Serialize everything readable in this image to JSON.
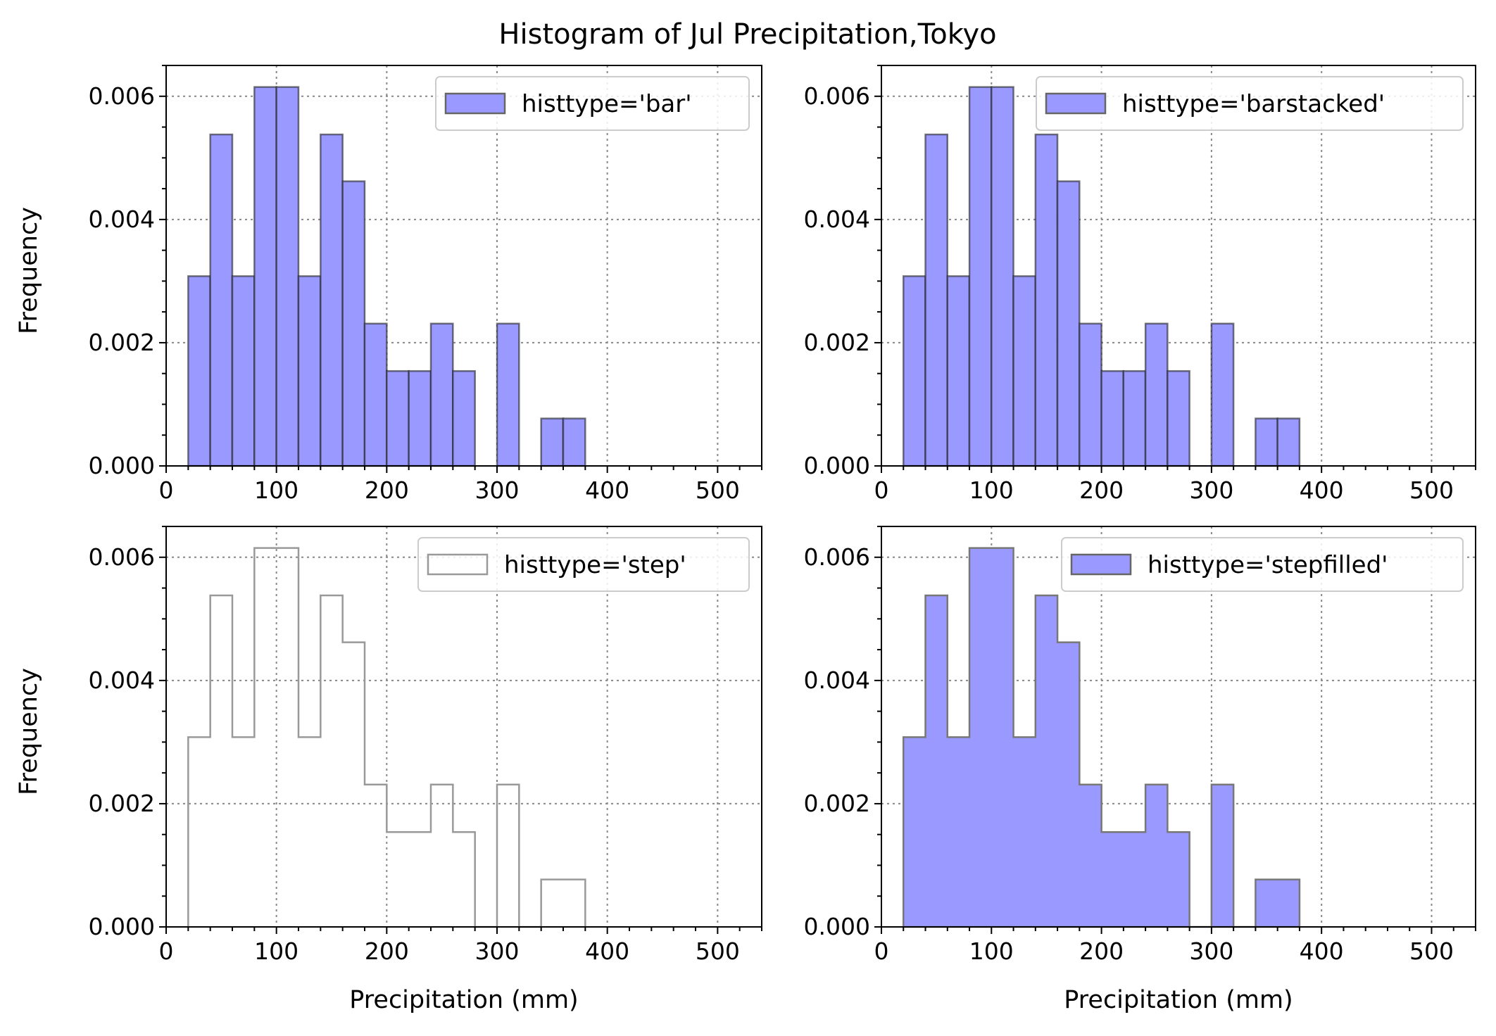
{
  "figure": {
    "title": "Histogram of Jul Precipitation,Tokyo"
  },
  "chart_data": [
    {
      "type": "bar",
      "histtype": "bar",
      "legend": "histtype='bar'",
      "legend_position": "upper right",
      "xlabel": "",
      "ylabel": "Frequency",
      "xlim": [
        0,
        540
      ],
      "ylim": [
        0,
        0.0065
      ],
      "grid": true,
      "bin_edges": [
        20,
        40,
        60,
        80,
        100,
        120,
        140,
        160,
        180,
        200,
        220,
        240,
        260,
        280,
        300,
        320,
        340,
        360,
        380
      ],
      "values": [
        0.00308,
        0.00538,
        0.00308,
        0.00615,
        0.00615,
        0.00308,
        0.00538,
        0.00462,
        0.00231,
        0.00154,
        0.00154,
        0.00231,
        0.00154,
        0,
        0.00231,
        0,
        0.00077,
        0.00077
      ],
      "xticks": [
        0,
        100,
        200,
        300,
        400,
        500
      ],
      "yticks": [
        0.0,
        0.002,
        0.004,
        0.006
      ],
      "xticklabels": [
        "0",
        "100",
        "200",
        "300",
        "400",
        "500"
      ],
      "yticklabels": [
        "0.000",
        "0.002",
        "0.004",
        "0.006"
      ],
      "color": "#9999ff",
      "edgecolor": "#222222"
    },
    {
      "type": "bar",
      "histtype": "barstacked",
      "legend": "histtype='barstacked'",
      "legend_position": "upper right",
      "xlabel": "",
      "ylabel": "",
      "xlim": [
        0,
        540
      ],
      "ylim": [
        0,
        0.0065
      ],
      "grid": true,
      "bin_edges": [
        20,
        40,
        60,
        80,
        100,
        120,
        140,
        160,
        180,
        200,
        220,
        240,
        260,
        280,
        300,
        320,
        340,
        360,
        380
      ],
      "values": [
        0.00308,
        0.00538,
        0.00308,
        0.00615,
        0.00615,
        0.00308,
        0.00538,
        0.00462,
        0.00231,
        0.00154,
        0.00154,
        0.00231,
        0.00154,
        0,
        0.00231,
        0,
        0.00077,
        0.00077
      ],
      "xticks": [
        0,
        100,
        200,
        300,
        400,
        500
      ],
      "yticks": [
        0.0,
        0.002,
        0.004,
        0.006
      ],
      "xticklabels": [
        "0",
        "100",
        "200",
        "300",
        "400",
        "500"
      ],
      "yticklabels": [
        "0.000",
        "0.002",
        "0.004",
        "0.006"
      ],
      "color": "#9999ff",
      "edgecolor": "#222222"
    },
    {
      "type": "line",
      "histtype": "step",
      "legend": "histtype='step'",
      "legend_position": "upper right",
      "xlabel": "Precipitation (mm)",
      "ylabel": "Frequency",
      "xlim": [
        0,
        540
      ],
      "ylim": [
        0,
        0.0065
      ],
      "grid": true,
      "bin_edges": [
        20,
        40,
        60,
        80,
        100,
        120,
        140,
        160,
        180,
        200,
        220,
        240,
        260,
        280,
        300,
        320,
        340,
        360,
        380
      ],
      "values": [
        0.00308,
        0.00538,
        0.00308,
        0.00615,
        0.00615,
        0.00308,
        0.00538,
        0.00462,
        0.00231,
        0.00154,
        0.00154,
        0.00231,
        0.00154,
        0,
        0.00231,
        0,
        0.00077,
        0.00077
      ],
      "xticks": [
        0,
        100,
        200,
        300,
        400,
        500
      ],
      "yticks": [
        0.0,
        0.002,
        0.004,
        0.006
      ],
      "xticklabels": [
        "0",
        "100",
        "200",
        "300",
        "400",
        "500"
      ],
      "yticklabels": [
        "0.000",
        "0.002",
        "0.004",
        "0.006"
      ],
      "color": "#999999",
      "edgecolor": "#999999"
    },
    {
      "type": "area",
      "histtype": "stepfilled",
      "legend": "histtype='stepfilled'",
      "legend_position": "upper right",
      "xlabel": "Precipitation (mm)",
      "ylabel": "",
      "xlim": [
        0,
        540
      ],
      "ylim": [
        0,
        0.0065
      ],
      "grid": true,
      "bin_edges": [
        20,
        40,
        60,
        80,
        100,
        120,
        140,
        160,
        180,
        200,
        220,
        240,
        260,
        280,
        300,
        320,
        340,
        360,
        380
      ],
      "values": [
        0.00308,
        0.00538,
        0.00308,
        0.00615,
        0.00615,
        0.00308,
        0.00538,
        0.00462,
        0.00231,
        0.00154,
        0.00154,
        0.00231,
        0.00154,
        0,
        0.00231,
        0,
        0.00077,
        0.00077
      ],
      "xticks": [
        0,
        100,
        200,
        300,
        400,
        500
      ],
      "yticks": [
        0.0,
        0.002,
        0.004,
        0.006
      ],
      "xticklabels": [
        "0",
        "100",
        "200",
        "300",
        "400",
        "500"
      ],
      "yticklabels": [
        "0.000",
        "0.002",
        "0.004",
        "0.006"
      ],
      "color": "#9999ff",
      "edgecolor": "#777777"
    }
  ]
}
